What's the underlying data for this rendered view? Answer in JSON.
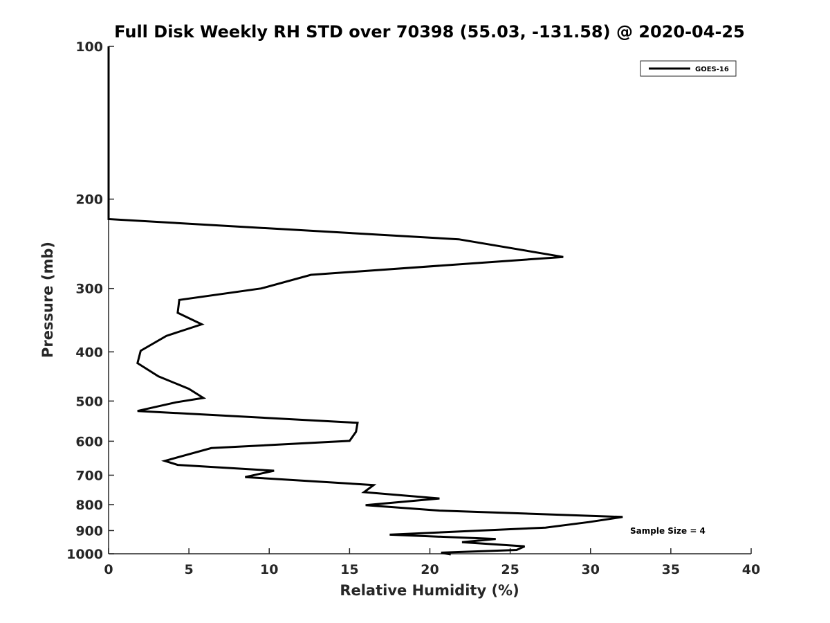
{
  "chart_data": {
    "type": "line",
    "title": "Full Disk Weekly RH STD over 70398 (55.03, -131.58) @ 2020-04-25",
    "xlabel": "Relative Humidity (%)",
    "ylabel": "Pressure (mb)",
    "xlim": [
      0,
      40
    ],
    "ylim": [
      100,
      1000
    ],
    "y_scale": "log",
    "y_reversed": true,
    "x_ticks": [
      0,
      5,
      10,
      15,
      20,
      25,
      30,
      35,
      40
    ],
    "y_ticks": [
      100,
      200,
      300,
      400,
      500,
      600,
      700,
      800,
      900,
      1000
    ],
    "grid": false,
    "legend_position": "top-right",
    "series": [
      {
        "name": "GOES-16",
        "color": "#000000",
        "x": [
          0,
          0,
          0,
          21.8,
          28.3,
          12.6,
          9.5,
          4.4,
          4.3,
          5.8,
          3.6,
          2.0,
          1.8,
          3.1,
          5.0,
          5.9,
          4.2,
          1.8,
          15.5,
          15.4,
          15.0,
          6.4,
          3.5,
          4.3,
          10.3,
          8.5,
          16.5,
          15.9,
          20.6,
          16.0,
          20.6,
          32.0,
          29.9,
          27.2,
          17.5,
          24.1,
          22.0,
          25.9,
          25.4,
          20.7,
          21.3
        ],
        "y": [
          100,
          200,
          219,
          240,
          260,
          282,
          300,
          316,
          335,
          353,
          372,
          398,
          421,
          447,
          473,
          493,
          503,
          523,
          552,
          575,
          599,
          619,
          656,
          668,
          686,
          706,
          732,
          756,
          778,
          802,
          822,
          846,
          866,
          888,
          917,
          935,
          949,
          967,
          983,
          995,
          1003
        ]
      }
    ],
    "annotations": [
      "Sample Size = 4"
    ]
  }
}
